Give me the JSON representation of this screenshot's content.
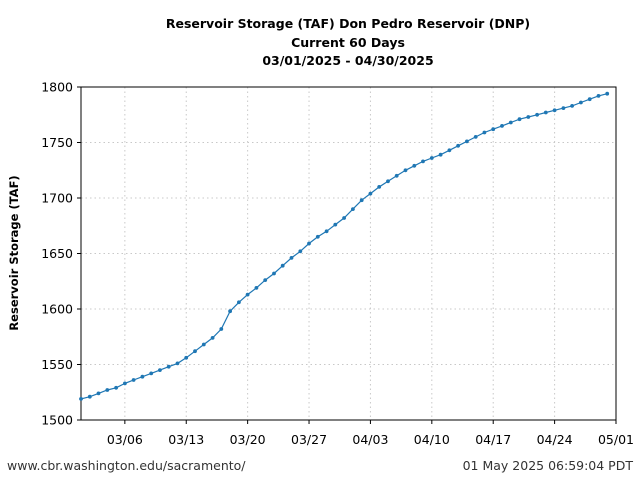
{
  "chart_data": {
    "type": "line",
    "title": [
      "Reservoir Storage (TAF) Don Pedro Reservoir (DNP)",
      "Current 60 Days",
      "03/01/2025 - 04/30/2025"
    ],
    "ylabel": "Reservoir Storage (TAF)",
    "xlabel": "",
    "ylim": [
      1500,
      1800
    ],
    "yticks": [
      1500,
      1550,
      1600,
      1650,
      1700,
      1750,
      1800
    ],
    "xlim": [
      "2025-03-01",
      "2025-05-01"
    ],
    "xticks": [
      {
        "date": "2025-03-06",
        "label": "03/06"
      },
      {
        "date": "2025-03-13",
        "label": "03/13"
      },
      {
        "date": "2025-03-20",
        "label": "03/20"
      },
      {
        "date": "2025-03-27",
        "label": "03/27"
      },
      {
        "date": "2025-04-03",
        "label": "04/03"
      },
      {
        "date": "2025-04-10",
        "label": "04/10"
      },
      {
        "date": "2025-04-17",
        "label": "04/17"
      },
      {
        "date": "2025-04-24",
        "label": "04/24"
      },
      {
        "date": "2025-05-01",
        "label": "05/01"
      }
    ],
    "grid": true,
    "series": [
      {
        "color": "#1f77b4",
        "x": [
          "2025-03-01",
          "2025-03-02",
          "2025-03-03",
          "2025-03-04",
          "2025-03-05",
          "2025-03-06",
          "2025-03-07",
          "2025-03-08",
          "2025-03-09",
          "2025-03-10",
          "2025-03-11",
          "2025-03-12",
          "2025-03-13",
          "2025-03-14",
          "2025-03-15",
          "2025-03-16",
          "2025-03-17",
          "2025-03-18",
          "2025-03-19",
          "2025-03-20",
          "2025-03-21",
          "2025-03-22",
          "2025-03-23",
          "2025-03-24",
          "2025-03-25",
          "2025-03-26",
          "2025-03-27",
          "2025-03-28",
          "2025-03-29",
          "2025-03-30",
          "2025-03-31",
          "2025-04-01",
          "2025-04-02",
          "2025-04-03",
          "2025-04-04",
          "2025-04-05",
          "2025-04-06",
          "2025-04-07",
          "2025-04-08",
          "2025-04-09",
          "2025-04-10",
          "2025-04-11",
          "2025-04-12",
          "2025-04-13",
          "2025-04-14",
          "2025-04-15",
          "2025-04-16",
          "2025-04-17",
          "2025-04-18",
          "2025-04-19",
          "2025-04-20",
          "2025-04-21",
          "2025-04-22",
          "2025-04-23",
          "2025-04-24",
          "2025-04-25",
          "2025-04-26",
          "2025-04-27",
          "2025-04-28",
          "2025-04-29",
          "2025-04-30"
        ],
        "values": [
          1519,
          1521,
          1524,
          1527,
          1529,
          1533,
          1536,
          1539,
          1542,
          1545,
          1548,
          1551,
          1556,
          1562,
          1568,
          1574,
          1582,
          1598,
          1606,
          1613,
          1619,
          1626,
          1632,
          1639,
          1646,
          1652,
          1659,
          1665,
          1670,
          1676,
          1682,
          1690,
          1698,
          1704,
          1710,
          1715,
          1720,
          1725,
          1729,
          1733,
          1736,
          1739,
          1743,
          1747,
          1751,
          1755,
          1759,
          1762,
          1765,
          1768,
          1771,
          1773,
          1775,
          1777,
          1779,
          1781,
          1783,
          1786,
          1789,
          1792,
          1794
        ]
      }
    ]
  },
  "footer": {
    "source": "www.cbr.washington.edu/sacramento/",
    "timestamp": "01 May 2025 06:59:04 PDT"
  }
}
